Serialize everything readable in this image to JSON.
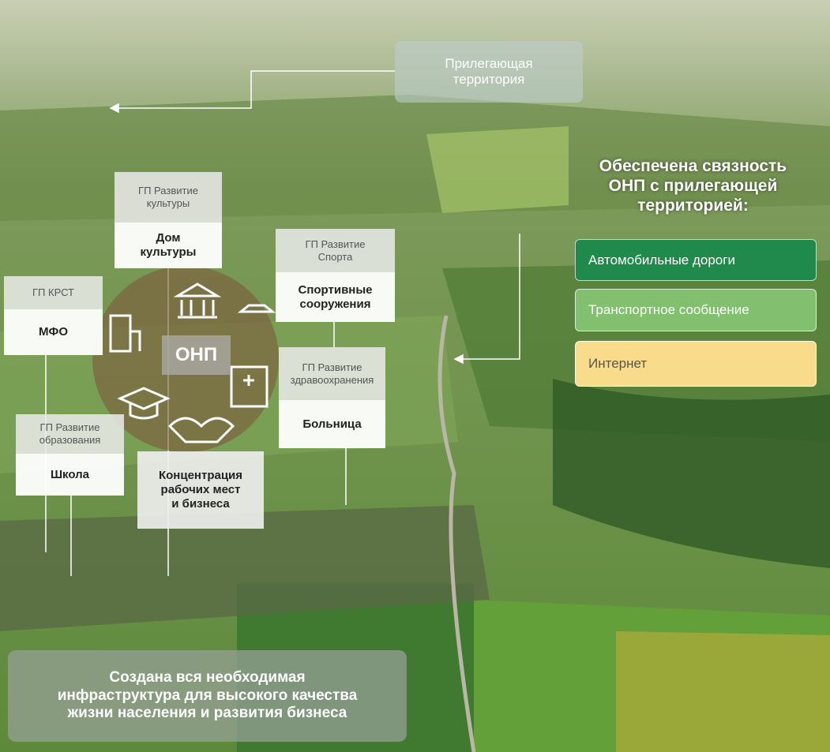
{
  "adjacent": {
    "lines": [
      "Прилегающая",
      "территория"
    ]
  },
  "connectivity": {
    "heading": [
      "Обеспечена связность",
      "ОНП с прилегающей",
      "территорией:"
    ],
    "items": [
      "Автомобильные дороги",
      "Транспортное сообщение",
      "Интернет"
    ]
  },
  "center": {
    "label": "ОНП"
  },
  "programs": [
    {
      "program": [
        "ГП Развитие",
        "культуры"
      ],
      "facility": [
        "Дом",
        "культуры"
      ]
    },
    {
      "program": [
        "ГП Развитие",
        "Спорта"
      ],
      "facility": [
        "Спортивные",
        "сооружения"
      ]
    },
    {
      "program": [
        "ГП КРСТ"
      ],
      "facility": [
        "МФО"
      ]
    },
    {
      "program": [
        "ГП Развитие",
        "здравоохранения"
      ],
      "facility": [
        "Больница"
      ]
    },
    {
      "program": [
        "ГП Развитие",
        "образования"
      ],
      "facility": [
        "Школа"
      ]
    }
  ],
  "business": [
    "Концентрация",
    "рабочих мест",
    "и бизнеса"
  ],
  "summary": [
    "Создана вся необходимая",
    "инфраструктура для высокого качества",
    "жизни населения и развития бизнеса"
  ]
}
